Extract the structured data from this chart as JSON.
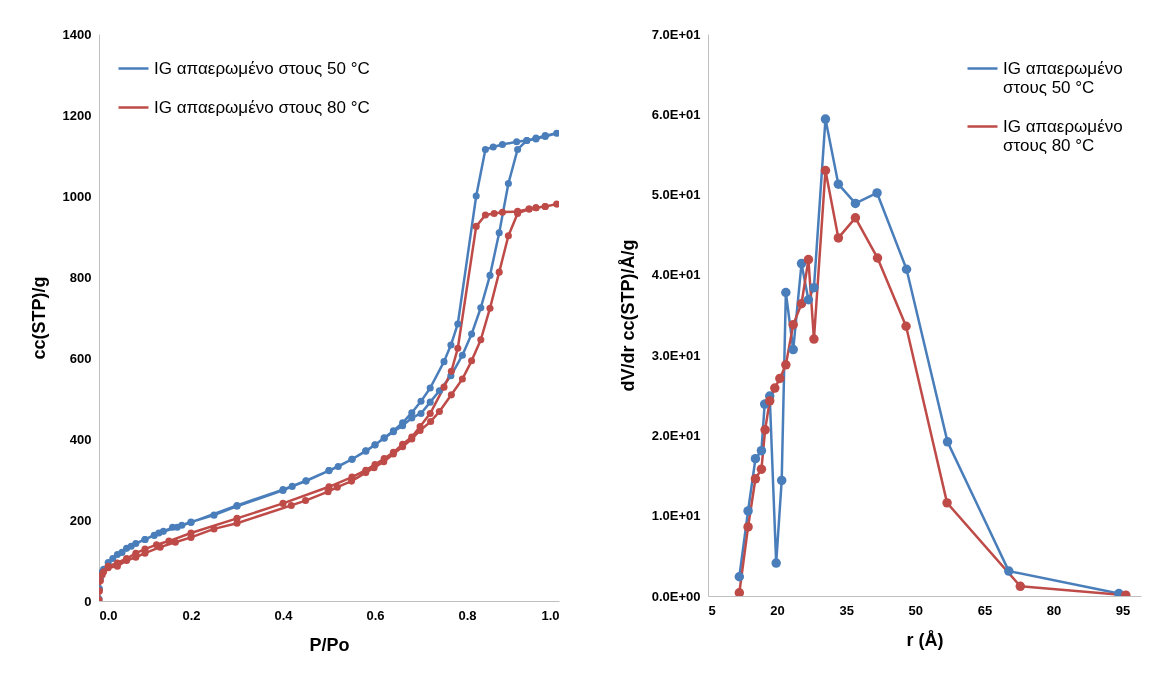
{
  "chart_data": [
    {
      "type": "line",
      "xlabel": "P/Po",
      "ylabel": "cc(STP)/g",
      "xlim": [
        0,
        1
      ],
      "ylim": [
        0,
        1400
      ],
      "xticks": [
        {
          "value": 0,
          "label": "0.0"
        },
        0.2,
        0.4,
        0.6,
        0.8,
        {
          "value": 1,
          "label": "1.0"
        }
      ],
      "yticks": [
        0,
        200,
        400,
        600,
        800,
        1000,
        1200,
        1400
      ],
      "marker": "circle",
      "legend": "top left",
      "series": [
        {
          "name": "IG απαερωμένο στους 50 °C",
          "color": "#4a7ebb",
          "x": [
            0.0,
            0.001,
            0.003,
            0.007,
            0.01,
            0.02,
            0.03,
            0.04,
            0.05,
            0.06,
            0.07,
            0.08,
            0.1,
            0.12,
            0.14,
            0.16,
            0.18,
            0.2,
            0.25,
            0.3,
            0.4,
            0.42,
            0.45,
            0.5,
            0.52,
            0.55,
            0.58,
            0.6,
            0.62,
            0.64,
            0.66,
            0.68,
            0.7,
            0.72,
            0.74,
            0.765,
            0.79,
            0.81,
            0.83,
            0.85,
            0.87,
            0.89,
            0.91,
            0.93,
            0.95,
            0.97,
            0.995,
            0.97,
            0.95,
            0.93,
            0.908,
            0.877,
            0.857,
            0.84,
            0.82,
            0.78,
            0.765,
            0.75,
            0.72,
            0.7,
            0.68,
            0.66,
            0.64,
            0.62,
            0.6,
            0.58,
            0.55,
            0.5,
            0.45,
            0.4,
            0.3,
            0.2,
            0.17,
            0.13,
            0.1
          ],
          "values": [
            5,
            30,
            55,
            72,
            78,
            95,
            105,
            115,
            120,
            130,
            135,
            142,
            152,
            162,
            172,
            182,
            187,
            195,
            212,
            234,
            273,
            283,
            296,
            322,
            332,
            350,
            371,
            386,
            402,
            418,
            433,
            452,
            463,
            491,
            519,
            556,
            607,
            659,
            724,
            804,
            909,
            1031,
            1115,
            1137,
            1143,
            1149,
            1155,
            1147,
            1141,
            1137,
            1134,
            1127,
            1121,
            1115,
            1000,
            684,
            632,
            591,
            526,
            493,
            465,
            440,
            420,
            403,
            385,
            370,
            350,
            322,
            297,
            275,
            236,
            194,
            182,
            168,
            152
          ]
        },
        {
          "name": "IG απαερωμένο στους 80 °C",
          "color": "#be4b48",
          "x": [
            0.0,
            0.001,
            0.003,
            0.007,
            0.01,
            0.02,
            0.04,
            0.06,
            0.08,
            0.1,
            0.133,
            0.166,
            0.2,
            0.25,
            0.3,
            0.418,
            0.449,
            0.498,
            0.518,
            0.549,
            0.58,
            0.598,
            0.619,
            0.64,
            0.66,
            0.68,
            0.698,
            0.721,
            0.74,
            0.766,
            0.79,
            0.81,
            0.83,
            0.85,
            0.87,
            0.89,
            0.91,
            0.935,
            0.95,
            0.97,
            0.995,
            0.97,
            0.95,
            0.935,
            0.91,
            0.877,
            0.859,
            0.84,
            0.82,
            0.78,
            0.766,
            0.75,
            0.72,
            0.698,
            0.68,
            0.66,
            0.64,
            0.62,
            0.6,
            0.58,
            0.55,
            0.5,
            0.4,
            0.3,
            0.2,
            0.152,
            0.125,
            0.1,
            0.08,
            0.06,
            0.04,
            0.02
          ],
          "values": [
            3,
            25,
            50,
            65,
            72,
            82,
            86,
            100,
            108,
            118,
            133,
            145,
            157,
            178,
            192,
            236,
            248,
            270,
            281,
            296,
            317,
            329,
            344,
            363,
            381,
            400,
            421,
            443,
            468,
            509,
            548,
            593,
            645,
            723,
            812,
            902,
            957,
            968,
            971,
            974,
            980,
            974,
            971,
            968,
            962,
            960,
            957,
            953,
            925,
            624,
            567,
            528,
            463,
            431,
            405,
            387,
            367,
            352,
            337,
            323,
            306,
            282,
            241,
            204,
            168,
            148,
            139,
            128,
            118,
            105,
            94,
            86
          ]
        }
      ]
    },
    {
      "type": "line",
      "xlabel": "r (Å)",
      "ylabel": "dV/dr  cc(STP)/Å/g",
      "xlim": [
        5,
        99
      ],
      "ylim": [
        0,
        70
      ],
      "xticks": [
        5,
        20,
        35,
        50,
        65,
        80,
        95
      ],
      "yticks": [
        {
          "value": 0,
          "label": "0.0E+00"
        },
        {
          "value": 10,
          "label": "1.0E+01"
        },
        {
          "value": 20,
          "label": "2.0E+01"
        },
        {
          "value": 30,
          "label": "3.0E+01"
        },
        {
          "value": 40,
          "label": "4.0E+01"
        },
        {
          "value": 50,
          "label": "5.0E+01"
        },
        {
          "value": 60,
          "label": "6.0E+01"
        },
        {
          "value": 70,
          "label": "7.0E+01"
        }
      ],
      "marker": "circle",
      "legend": "top right",
      "series": [
        {
          "name": "IG απαερωμένο στους 50 °C",
          "color": "#4a7ebb",
          "x": [
            11.8,
            13.7,
            15.3,
            16.6,
            17.3,
            18.4,
            19.8,
            21.0,
            21.9,
            23.5,
            25.3,
            26.8,
            28.0,
            30.5,
            33.3,
            37.0,
            41.7,
            48.1,
            57.0,
            70.3,
            94.2
          ],
          "values": [
            2.4,
            10.6,
            17.1,
            18.1,
            23.9,
            24.9,
            4.1,
            14.4,
            37.8,
            30.7,
            41.4,
            36.9,
            38.4,
            59.4,
            51.3,
            48.9,
            50.2,
            40.7,
            19.2,
            3.1,
            0.3
          ]
        },
        {
          "name": "IG απαερωμένο στους 80 °C",
          "color": "#be4b48",
          "x": [
            11.8,
            13.7,
            15.3,
            16.6,
            17.4,
            18.4,
            19.5,
            20.6,
            21.9,
            23.5,
            25.3,
            26.8,
            28.0,
            30.5,
            33.3,
            37.0,
            41.8,
            48.0,
            56.9,
            72.8,
            95.7
          ],
          "values": [
            0.4,
            8.6,
            14.6,
            15.8,
            20.7,
            24.3,
            25.9,
            27.1,
            28.8,
            33.8,
            36.4,
            41.9,
            32.0,
            53.0,
            44.6,
            47.1,
            42.1,
            33.6,
            11.6,
            1.2,
            0.1
          ]
        }
      ]
    }
  ]
}
